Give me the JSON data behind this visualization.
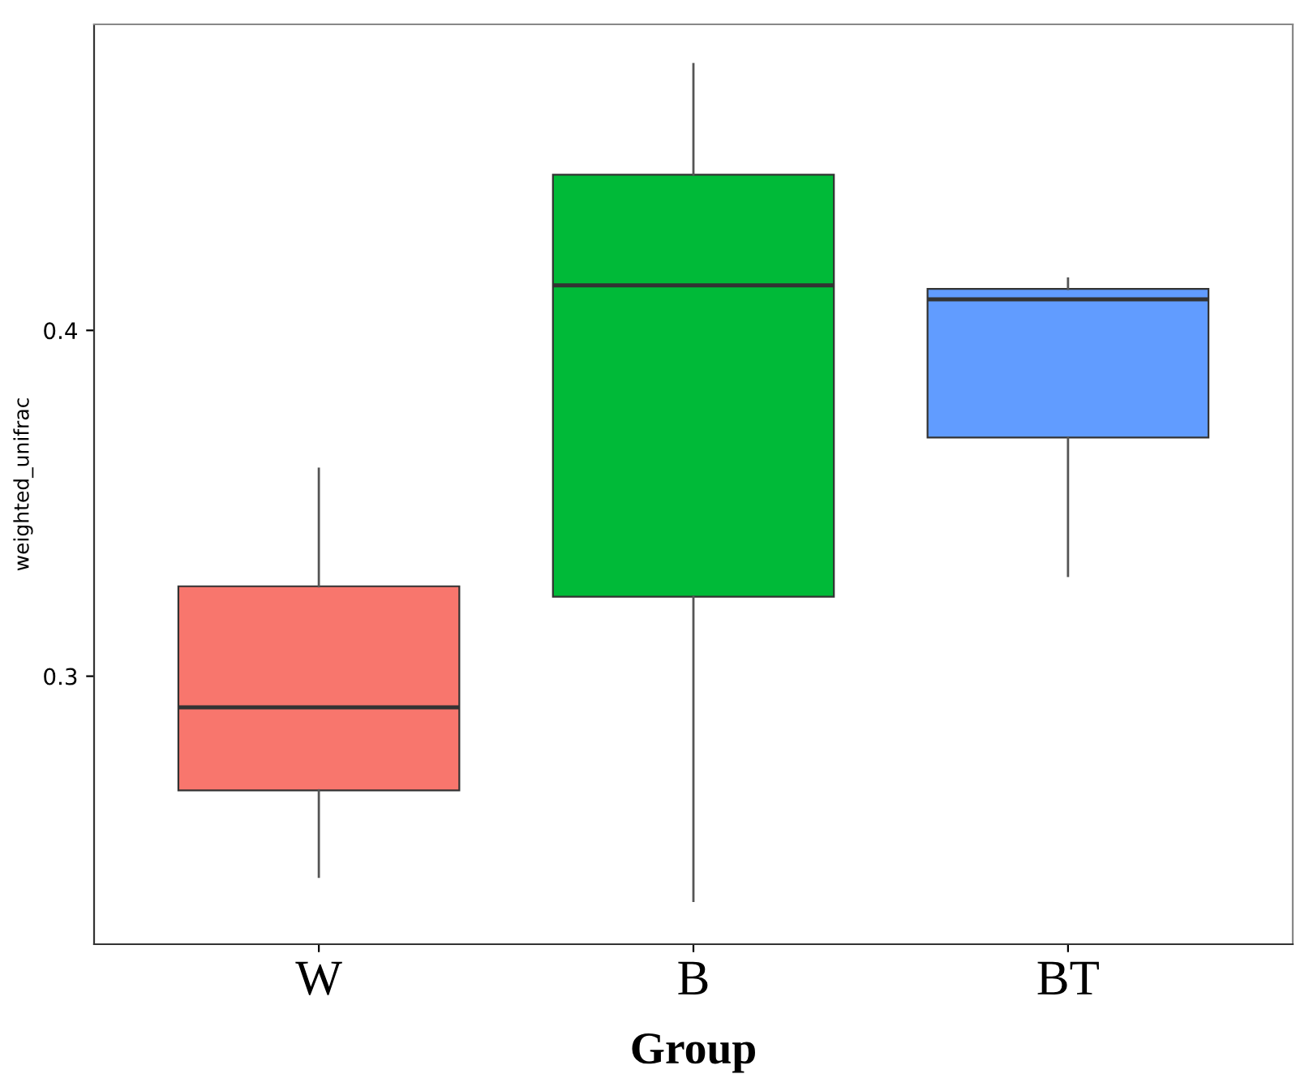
{
  "chart_data": {
    "type": "box",
    "xlabel": "Group",
    "ylabel": "weighted_unifrac",
    "categories": [
      "W",
      "B",
      "BT"
    ],
    "colors": [
      "#f8766d",
      "#00ba38",
      "#619cff"
    ],
    "boxes": [
      {
        "low": 0.242,
        "q1": 0.267,
        "median": 0.291,
        "q3": 0.326,
        "high": 0.36
      },
      {
        "low": 0.235,
        "q1": 0.323,
        "median": 0.413,
        "q3": 0.445,
        "high": 0.477
      },
      {
        "low": 0.329,
        "q1": 0.369,
        "median": 0.409,
        "q3": 0.412,
        "high": 0.415
      }
    ],
    "ylim": [
      0.2225,
      0.4885
    ],
    "yticks": [
      0.3,
      0.4
    ],
    "grid": false
  }
}
